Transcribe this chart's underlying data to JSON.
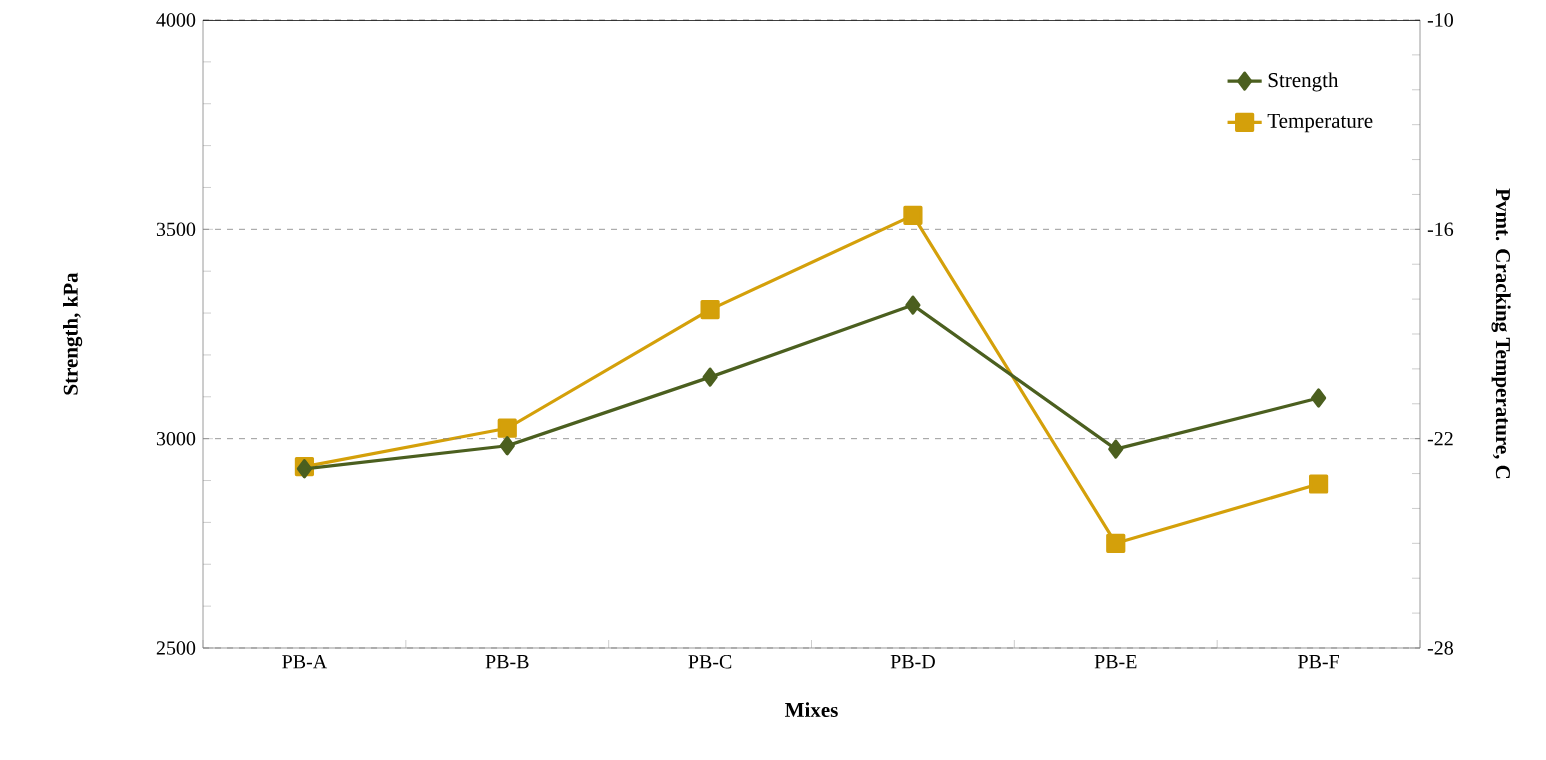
{
  "chart_data": {
    "type": "line",
    "xlabel": "Mixes",
    "ylabel": "Strength, kPa",
    "y2label": "Pvmt. Cracking Temperature, C",
    "categories": [
      "PB-A",
      "PB-B",
      "PB-C",
      "PB-D",
      "PB-E",
      "PB-F"
    ],
    "series": [
      {
        "name": "Strength",
        "color": "#4b5f1f",
        "marker": "diamond",
        "values": [
          2928,
          2983,
          3147,
          3319,
          2975,
          3097
        ]
      },
      {
        "name": "Temperature",
        "color": "#d4a00a",
        "marker": "square",
        "axis": "y2",
        "values": [
          -22.8,
          -21.7,
          -18.3,
          -15.6,
          -25.0,
          -23.3
        ]
      }
    ],
    "ylim": [
      2500,
      4000
    ],
    "yticks": [
      2500,
      3000,
      3500,
      4000
    ],
    "y2lim": [
      -28,
      -10
    ],
    "y2ticks": [
      -28,
      -22,
      -16,
      -10
    ],
    "grid": "y",
    "legend": "top right",
    "line_style": "solid"
  }
}
